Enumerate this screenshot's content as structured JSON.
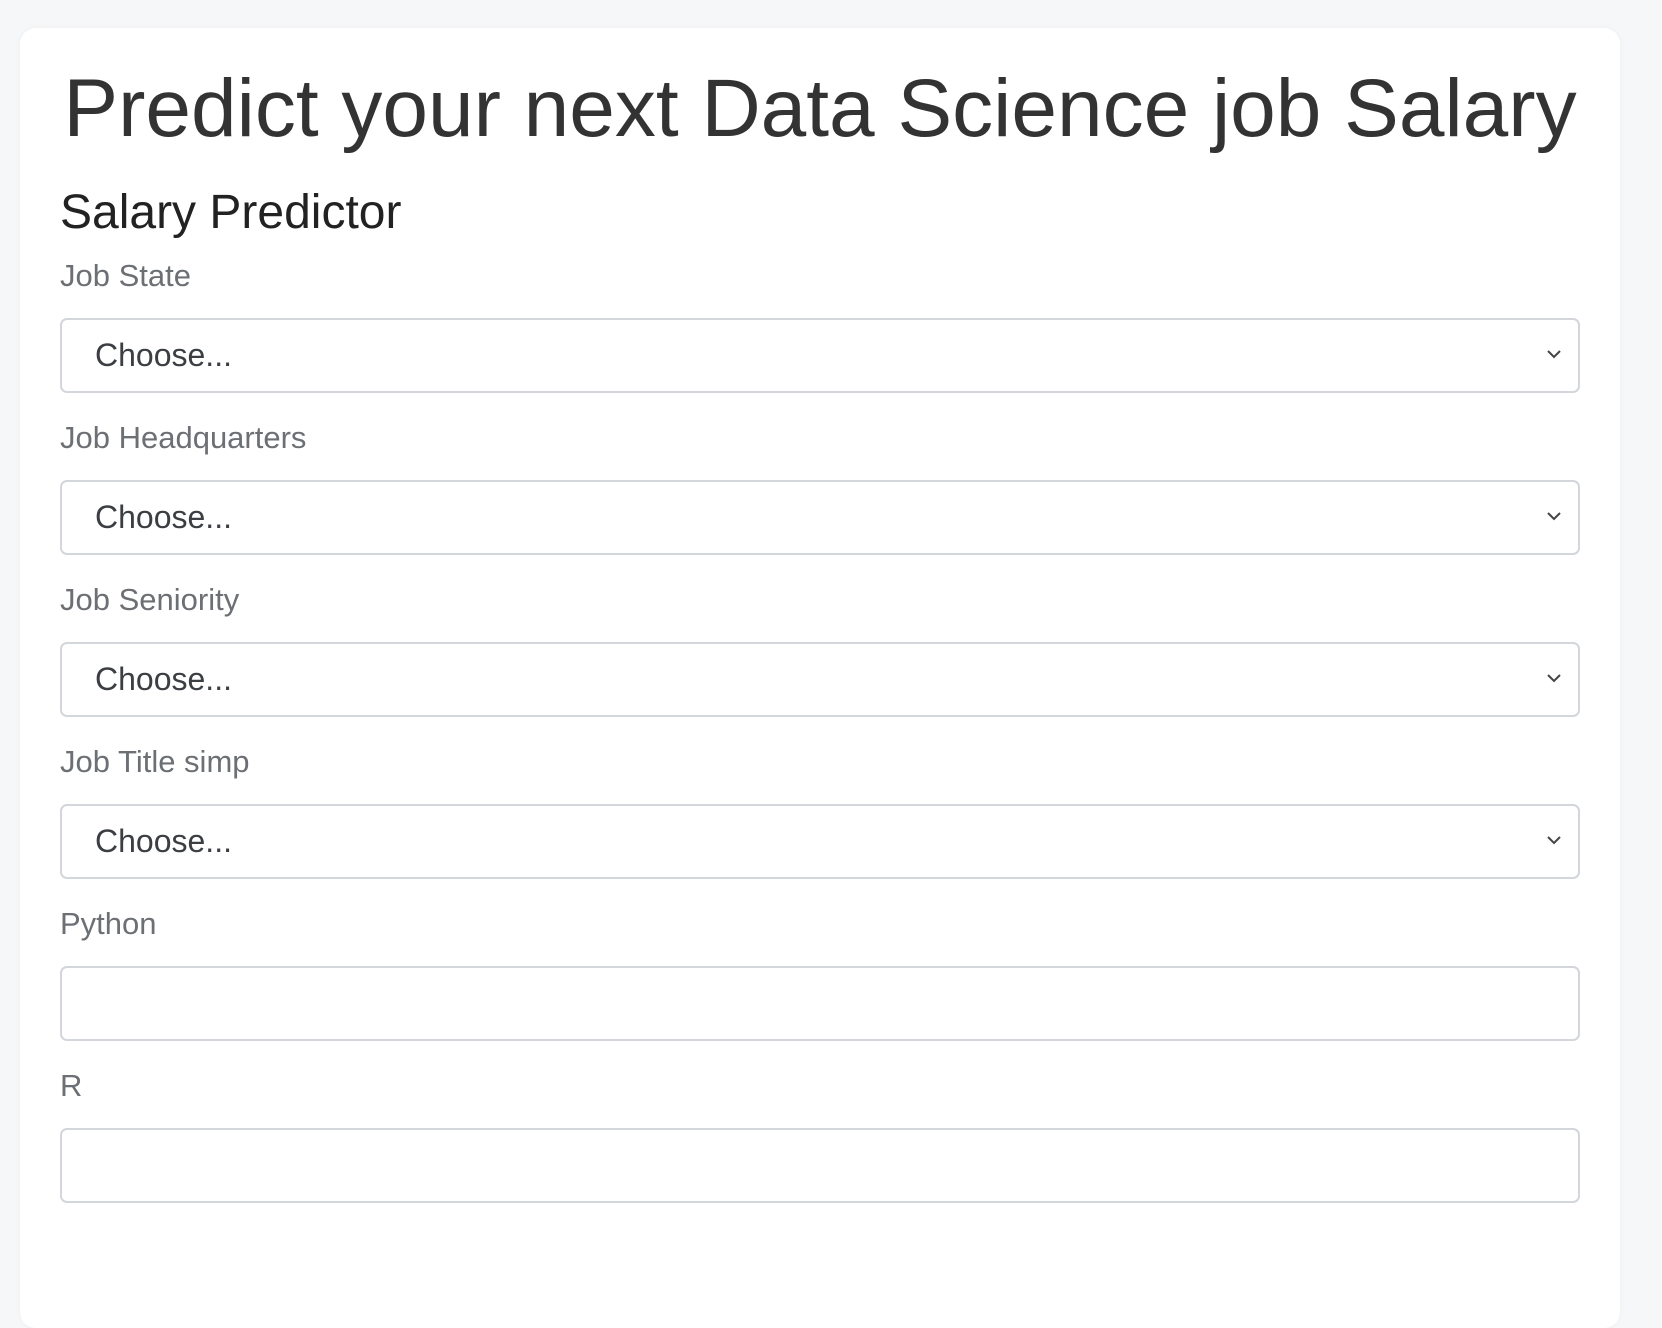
{
  "page": {
    "title": "Predict your next Data Science job Salary",
    "form_title": "Salary Predictor"
  },
  "fields": {
    "job_state": {
      "label": "Job State",
      "value": "Choose...",
      "icon": "chevron-down-icon"
    },
    "job_headquarters": {
      "label": "Job Headquarters",
      "value": "Choose...",
      "icon": "chevron-down-icon"
    },
    "job_seniority": {
      "label": "Job Seniority",
      "value": "Choose...",
      "icon": "chevron-down-icon"
    },
    "job_title_simp": {
      "label": "Job Title simp",
      "value": "Choose...",
      "icon": "chevron-down-icon"
    },
    "python": {
      "label": "Python",
      "value": ""
    },
    "r": {
      "label": "R",
      "value": ""
    }
  },
  "colors": {
    "background": "#f6f7f8",
    "card": "#ffffff",
    "title_text": "#333333",
    "label_text": "#6c6f73",
    "border": "#d3d6da"
  }
}
